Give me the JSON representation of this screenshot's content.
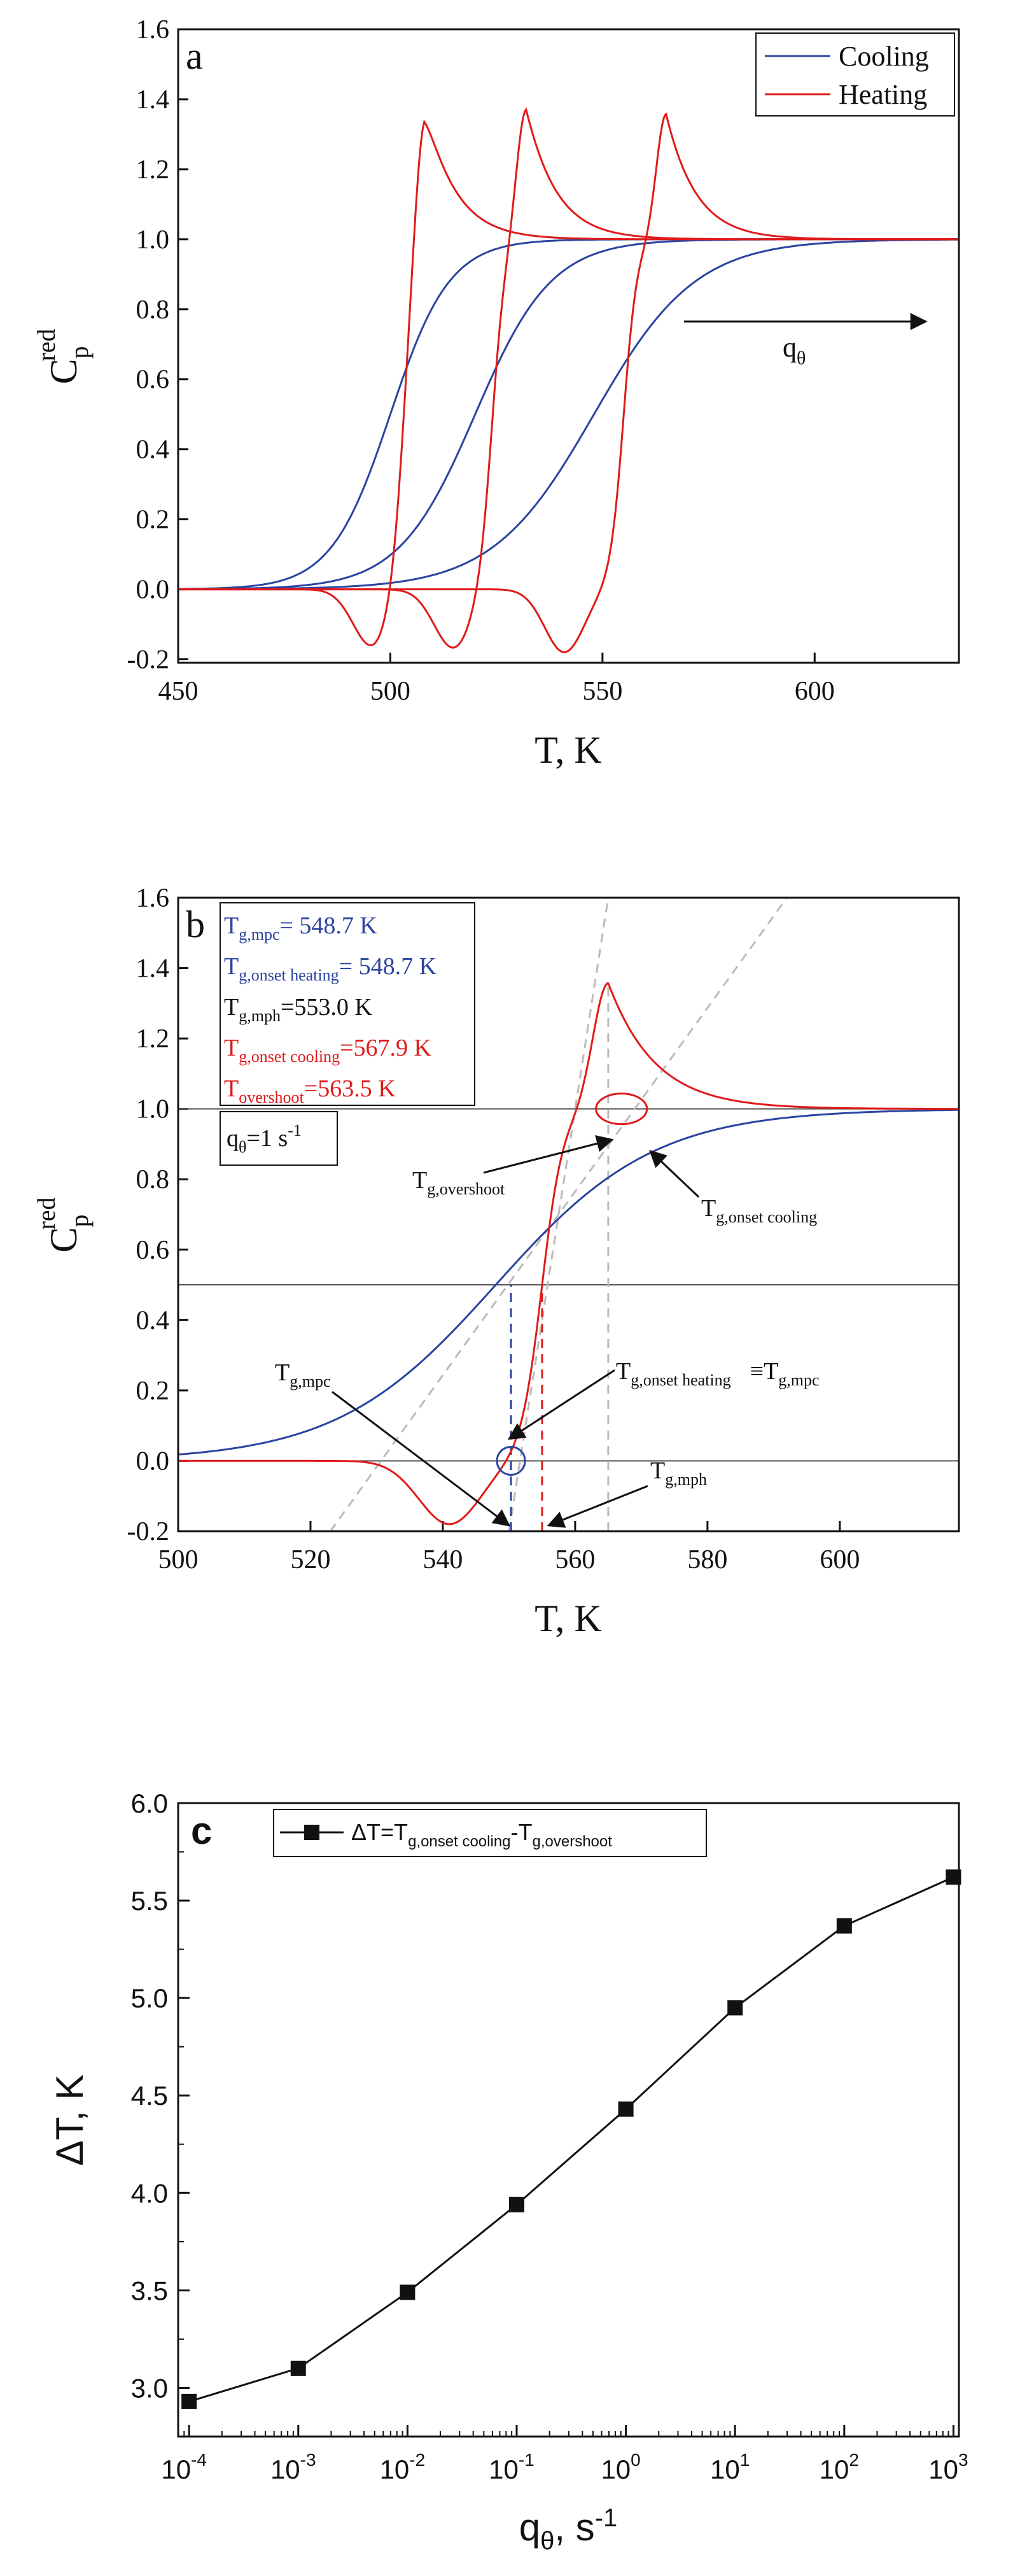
{
  "chart_data": [
    {
      "type": "line",
      "panel_label": "a",
      "xlabel": "T, K",
      "ylabel_main": "C",
      "ylabel_sub": "p",
      "ylabel_sup": "red",
      "xlim": [
        450,
        634
      ],
      "ylim": [
        -0.21,
        1.6
      ],
      "x_ticks": [
        450,
        500,
        550,
        600
      ],
      "y_ticks": [
        -0.2,
        0.0,
        0.2,
        0.4,
        0.6,
        0.8,
        1.0,
        1.2,
        1.4,
        1.6
      ],
      "legend": [
        {
          "label": "Cooling",
          "color": "#2a44a0"
        },
        {
          "label": "Heating",
          "color": "#e01a1a"
        }
      ],
      "arrow_label": "q",
      "arrow_label_sub": "θ",
      "cooling_curves": [
        {
          "center": 500,
          "width": 7
        },
        {
          "center": 520,
          "width": 9
        },
        {
          "center": 548,
          "width": 12
        }
      ],
      "heating_curves": [
        {
          "midpoint": 503,
          "dip_at": 496,
          "dip": -0.17,
          "peak_at": 508,
          "peak": 1.4
        },
        {
          "midpoint": 524,
          "dip_at": 515,
          "dip": -0.17,
          "peak_at": 532,
          "peak": 1.38
        },
        {
          "midpoint": 555,
          "dip_at": 541,
          "dip": -0.18,
          "peak_at": 565,
          "peak": 1.36
        }
      ]
    },
    {
      "type": "line",
      "panel_label": "b",
      "xlabel": "T, K",
      "ylabel_main": "C",
      "ylabel_sub": "p",
      "ylabel_sup": "red",
      "xlim": [
        500,
        618
      ],
      "ylim": [
        -0.2,
        1.6
      ],
      "x_ticks": [
        500,
        520,
        540,
        560,
        580,
        600
      ],
      "y_ticks": [
        -0.2,
        0.0,
        0.2,
        0.4,
        0.6,
        0.8,
        1.0,
        1.2,
        1.4,
        1.6
      ],
      "cooling_curve": {
        "center": 548,
        "width": 12,
        "color": "#2a44a0"
      },
      "heating_curve": {
        "midpoint": 555,
        "dip_at": 541,
        "dip": -0.18,
        "peak_at": 565,
        "peak": 1.36,
        "color": "#e01a1a"
      },
      "info_box": [
        {
          "sym": "T",
          "sub": "g,mpc",
          "val": "= 548.7 K",
          "color": "#2a44a0"
        },
        {
          "sym": "T",
          "sub": "g,onset heating",
          "val": "= 548.7 K",
          "color": "#2a44a0"
        },
        {
          "sym": "T",
          "sub": "g,mph",
          "val": "=553.0 K",
          "color": "#111111"
        },
        {
          "sym": "T",
          "sub": "g,onset cooling",
          "val": "=567.9 K",
          "color": "#e01a1a"
        },
        {
          "sym": "T",
          "sub": "overshoot",
          "val": "=563.5 K",
          "color": "#e01a1a"
        }
      ],
      "rate_box": {
        "main": "q",
        "sub": "θ",
        "rest": "=1 s",
        "sup": "-1"
      },
      "annotations": [
        {
          "sym": "T",
          "sub": "g,overshoot"
        },
        {
          "sym": "T",
          "sub": "g,onset cooling"
        },
        {
          "sym": "T",
          "sub": "g,mpc"
        },
        {
          "sym": "T",
          "sub": "g,onset heating",
          "tail": "≡T",
          "tail_sub": "g,mpc"
        },
        {
          "sym": "T",
          "sub": "g,mph"
        }
      ]
    },
    {
      "type": "line",
      "panel_label": "c",
      "xlabel_main": "q",
      "xlabel_sub": "θ",
      "xlabel_rest": ", s",
      "xlabel_sup": "-1",
      "ylabel": "ΔT, K",
      "xscale": "log",
      "xlim_exp": [
        -4.1,
        3.05
      ],
      "ylim": [
        2.75,
        6.0
      ],
      "x_tick_base": "10",
      "x_tick_exps": [
        "-4",
        "-3",
        "-2",
        "-1",
        "0",
        "1",
        "2",
        "3"
      ],
      "y_ticks": [
        "3.0",
        "3.5",
        "4.0",
        "4.5",
        "5.0",
        "5.5",
        "6.0"
      ],
      "legend_label_pre": "ΔT=T",
      "legend_sub1": "g,onset cooling",
      "legend_mid": "-T",
      "legend_sub2": "g,overshoot",
      "series": [
        {
          "name": "ΔT",
          "x_exp": [
            -4,
            -3,
            -2,
            -1,
            0,
            1,
            2,
            3
          ],
          "y": [
            2.93,
            3.1,
            3.49,
            3.94,
            4.43,
            4.95,
            5.37,
            5.62
          ]
        }
      ]
    }
  ]
}
